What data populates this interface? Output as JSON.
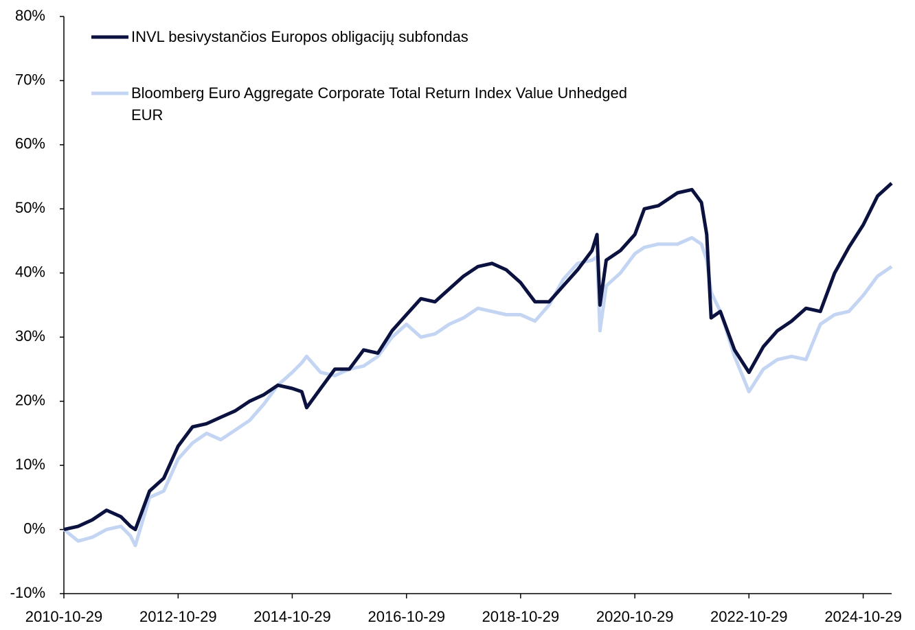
{
  "chart_data": {
    "type": "line",
    "x": [
      "2010-10-29",
      "2011-01-29",
      "2011-04-29",
      "2011-07-29",
      "2011-10-29",
      "2011-12-29",
      "2012-01-29",
      "2012-04-29",
      "2012-07-29",
      "2012-10-29",
      "2013-01-29",
      "2013-04-29",
      "2013-07-29",
      "2013-10-29",
      "2014-01-29",
      "2014-04-29",
      "2014-07-29",
      "2014-10-29",
      "2014-12-29",
      "2015-01-29",
      "2015-04-29",
      "2015-07-29",
      "2015-10-29",
      "2016-01-29",
      "2016-04-29",
      "2016-07-29",
      "2016-10-29",
      "2017-01-29",
      "2017-04-29",
      "2017-07-29",
      "2017-10-29",
      "2018-01-29",
      "2018-04-29",
      "2018-07-29",
      "2018-10-29",
      "2019-01-29",
      "2019-04-29",
      "2019-07-29",
      "2019-10-29",
      "2020-01-29",
      "2020-03-01",
      "2020-03-20",
      "2020-04-29",
      "2020-07-29",
      "2020-10-29",
      "2020-12-29",
      "2021-03-29",
      "2021-07-29",
      "2021-10-29",
      "2021-12-29",
      "2022-02-01",
      "2022-03-01",
      "2022-04-29",
      "2022-07-29",
      "2022-10-29",
      "2023-01-29",
      "2023-04-29",
      "2023-07-29",
      "2023-10-29",
      "2024-01-29",
      "2024-04-29",
      "2024-07-29",
      "2024-10-29",
      "2025-01-29",
      "2025-04-29"
    ],
    "series": [
      {
        "name": "INVL besivystančios Europos obligacijų subfondas",
        "color": "#0b1240",
        "values": [
          0,
          0.5,
          1.5,
          3,
          2,
          0.5,
          0,
          6,
          8,
          13,
          16,
          16.5,
          17.5,
          18.5,
          20,
          21,
          22.5,
          22,
          21.5,
          19,
          22,
          25,
          25,
          28,
          27.5,
          31,
          33.5,
          36,
          35.5,
          37.5,
          39.5,
          41,
          41.5,
          40.5,
          38.5,
          35.5,
          35.5,
          38,
          40.5,
          43.5,
          46,
          35,
          42,
          43.5,
          46,
          50,
          50.5,
          52.5,
          53,
          51,
          46,
          33,
          34,
          28,
          24.5,
          28.5,
          31,
          32.5,
          34.5,
          34,
          40,
          44,
          47.5,
          52,
          54
        ]
      },
      {
        "name": "Bloomberg Euro Aggregate Corporate Total Return Index Value Unhedged EUR",
        "color": "#c3d5f2",
        "values": [
          0,
          -1.8,
          -1.2,
          0,
          0.5,
          -1,
          -2.5,
          5,
          6,
          11,
          13.5,
          15,
          14,
          15.5,
          17,
          19.5,
          22.5,
          24.5,
          26,
          27,
          24.5,
          24,
          25,
          25.5,
          27,
          30,
          32,
          30,
          30.5,
          32,
          33,
          34.5,
          34,
          33.5,
          33.5,
          32.5,
          35,
          39,
          41.5,
          42,
          42.5,
          31,
          38,
          40,
          43,
          44,
          44.5,
          44.5,
          45.5,
          44.5,
          42,
          37,
          34,
          27,
          21.5,
          25,
          26.5,
          27,
          26.5,
          32,
          33.5,
          34,
          36.5,
          39.5,
          41
        ]
      }
    ],
    "xlim": [
      "2010-10-29",
      "2025-04-29"
    ],
    "xticks": [
      "2010-10-29",
      "2012-10-29",
      "2014-10-29",
      "2016-10-29",
      "2018-10-29",
      "2020-10-29",
      "2022-10-29",
      "2024-10-29"
    ],
    "ylim": [
      -10,
      80
    ],
    "yticks": [
      {
        "value": -10,
        "label": "-10%"
      },
      {
        "value": 0,
        "label": "0%"
      },
      {
        "value": 10,
        "label": "10%"
      },
      {
        "value": 20,
        "label": "20%"
      },
      {
        "value": 30,
        "label": "30%"
      },
      {
        "value": 40,
        "label": "40%"
      },
      {
        "value": 50,
        "label": "50%"
      },
      {
        "value": 60,
        "label": "60%"
      },
      {
        "value": 70,
        "label": "70%"
      },
      {
        "value": 80,
        "label": "80%"
      }
    ],
    "legend": "top-left",
    "grid": false
  }
}
